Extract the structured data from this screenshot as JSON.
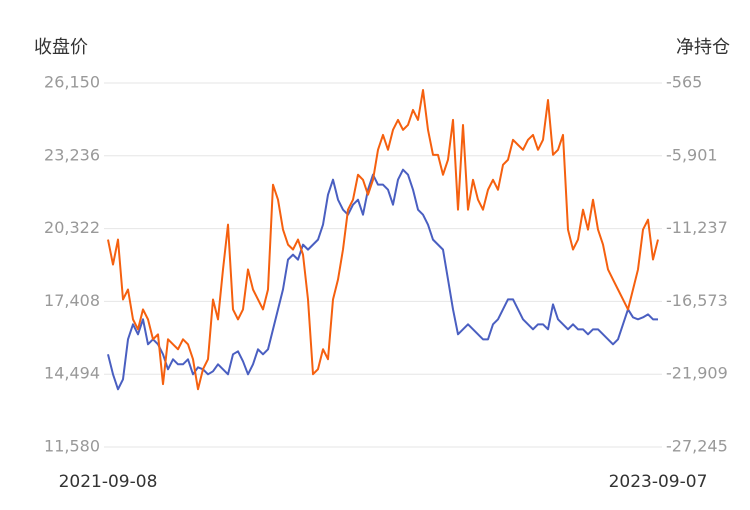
{
  "chart_data": {
    "type": "line",
    "ylabel": "收盘价",
    "y2label": "净持仓",
    "categories": [
      "2021-09-08",
      null,
      null,
      null,
      null,
      null,
      null,
      null,
      null,
      null,
      null,
      null,
      null,
      null,
      null,
      null,
      null,
      null,
      null,
      null,
      null,
      null,
      null,
      null,
      null,
      null,
      null,
      null,
      null,
      null,
      null,
      null,
      null,
      null,
      null,
      null,
      null,
      null,
      null,
      null,
      null,
      null,
      null,
      null,
      null,
      null,
      null,
      null,
      null,
      null,
      null,
      null,
      null,
      null,
      null,
      null,
      null,
      null,
      null,
      null,
      null,
      null,
      null,
      null,
      null,
      null,
      null,
      null,
      null,
      null,
      null,
      null,
      null,
      null,
      null,
      null,
      null,
      null,
      null,
      null,
      null,
      null,
      null,
      null,
      null,
      null,
      null,
      null,
      null,
      null,
      null,
      null,
      null,
      null,
      null,
      null,
      null,
      null,
      null,
      null,
      null,
      null,
      null,
      null,
      null,
      null,
      null,
      null,
      null,
      null,
      "2023-09-07"
    ],
    "ylim": [
      11580,
      26150
    ],
    "yticks": [
      {
        "value": 11580,
        "label": "11,580"
      },
      {
        "value": 14494,
        "label": "14,494"
      },
      {
        "value": 17408,
        "label": "17,408"
      },
      {
        "value": 20322,
        "label": "20,322"
      },
      {
        "value": 23236,
        "label": "23,236"
      },
      {
        "value": 26150,
        "label": "26,150"
      }
    ],
    "y2lim": [
      -27245,
      -565
    ],
    "y2ticks": [
      {
        "value": -27245,
        "label": "-27,245"
      },
      {
        "value": -21909,
        "label": "-21,909"
      },
      {
        "value": -16573,
        "label": "-16,573"
      },
      {
        "value": -11237,
        "label": "-11,237"
      },
      {
        "value": -5901,
        "label": "-5,901"
      },
      -565
    ],
    "grid": true,
    "series": [
      {
        "color": "#4a5fc1",
        "values": [
          15290,
          14490,
          13890,
          14290,
          15890,
          16490,
          16090,
          16690,
          15690,
          15890,
          15690,
          15290,
          14690,
          15090,
          14890,
          14890,
          15090,
          14490,
          14770,
          14690,
          14490,
          14610,
          14890,
          14690,
          14490,
          15290,
          15410,
          15010,
          14490,
          14890,
          15490,
          15290,
          15490,
          16290,
          17090,
          17890,
          19080,
          19280,
          19080,
          19680,
          19480,
          19680,
          19880,
          20480,
          21680,
          22280,
          21480,
          21080,
          20880,
          21280,
          21480,
          20880,
          21880,
          22480,
          22080,
          22080,
          21880,
          21280,
          22280,
          22680,
          22480,
          21880,
          21080,
          20880,
          20480,
          19880,
          19680,
          19480,
          18290,
          17090,
          16090,
          16290,
          16490,
          16290,
          16090,
          15890,
          15890,
          16490,
          16690,
          17090,
          17490,
          17490,
          17090,
          16690,
          16490,
          16290,
          16490,
          16490,
          16290,
          17290,
          16690,
          16490,
          16290,
          16490,
          16290,
          16290,
          16090,
          16290,
          16290,
          16090,
          15890,
          15690,
          15890,
          16490,
          17090,
          16770,
          16690,
          16770,
          16890,
          16690,
          16690
        ]
      },
      {
        "color": "#f5600f",
        "axis": "y2",
        "values": [
          -12040,
          -13870,
          -12040,
          -16430,
          -15700,
          -17890,
          -18620,
          -17160,
          -17890,
          -19350,
          -18990,
          -22640,
          -19350,
          -19720,
          -20080,
          -19350,
          -19720,
          -20810,
          -23010,
          -21540,
          -20810,
          -16430,
          -17890,
          -14230,
          -10950,
          -17160,
          -17890,
          -17160,
          -14230,
          -15700,
          -16430,
          -17160,
          -15700,
          -8020,
          -9120,
          -11310,
          -12410,
          -12770,
          -12040,
          -13140,
          -16430,
          -21910,
          -21540,
          -20080,
          -20810,
          -16430,
          -14970,
          -12770,
          -9850,
          -9120,
          -7290,
          -7660,
          -8750,
          -7660,
          -5460,
          -4370,
          -5460,
          -4000,
          -3270,
          -4000,
          -3640,
          -2540,
          -3270,
          -1080,
          -4000,
          -5830,
          -5830,
          -7290,
          -6190,
          -3270,
          -9850,
          -3640,
          -9850,
          -7660,
          -9120,
          -9850,
          -8390,
          -7660,
          -8390,
          -6560,
          -6190,
          -4730,
          -5100,
          -5460,
          -4730,
          -4370,
          -5460,
          -4730,
          -1810,
          -5830,
          -5460,
          -4370,
          -11310,
          -12770,
          -12040,
          -9850,
          -11310,
          -9120,
          -11310,
          -12410,
          -14230,
          -14970,
          -15700,
          -16430,
          -17160,
          -15700,
          -14230,
          -11310,
          -10580,
          -13500,
          -12040
        ]
      }
    ]
  }
}
